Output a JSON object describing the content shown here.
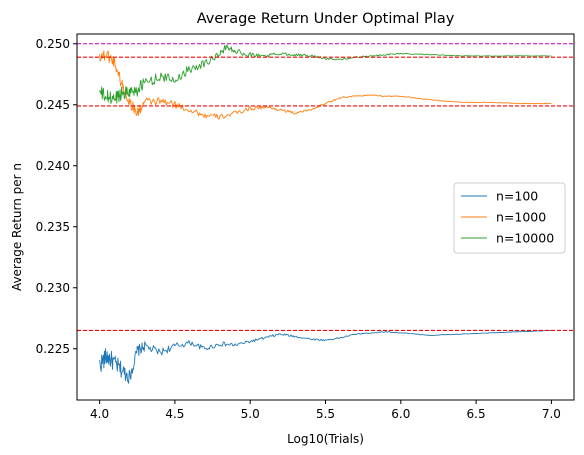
{
  "chart_data": {
    "type": "line",
    "title": "Average Return Under Optimal Play",
    "xlabel": "Log10(Trials)",
    "ylabel": "Average Return per n",
    "xlim": [
      3.85,
      7.15
    ],
    "ylim": [
      0.2208,
      0.2508
    ],
    "xticks": [
      4.0,
      4.5,
      5.0,
      5.5,
      6.0,
      6.5,
      7.0
    ],
    "xtick_labels": [
      "4.0",
      "4.5",
      "5.0",
      "5.5",
      "6.0",
      "6.5",
      "7.0"
    ],
    "yticks": [
      0.225,
      0.23,
      0.235,
      0.24,
      0.245,
      0.25
    ],
    "ytick_labels": [
      "0.225",
      "0.230",
      "0.235",
      "0.240",
      "0.245",
      "0.250"
    ],
    "grid": false,
    "legend_position": "center-right",
    "series": [
      {
        "name": "n=100",
        "color": "#1f77b4",
        "x": [
          4.0,
          4.05,
          4.1,
          4.15,
          4.2,
          4.25,
          4.3,
          4.4,
          4.5,
          4.6,
          4.7,
          4.8,
          4.9,
          5.0,
          5.1,
          5.2,
          5.3,
          5.4,
          5.5,
          5.6,
          5.7,
          5.8,
          5.9,
          6.0,
          6.2,
          6.4,
          6.6,
          6.8,
          7.0
        ],
        "y": [
          0.2237,
          0.2244,
          0.2238,
          0.2232,
          0.2227,
          0.2248,
          0.2252,
          0.2247,
          0.2252,
          0.2255,
          0.225,
          0.2254,
          0.2253,
          0.2256,
          0.2259,
          0.2262,
          0.226,
          0.2258,
          0.2257,
          0.2259,
          0.2262,
          0.2263,
          0.2264,
          0.2263,
          0.2261,
          0.2262,
          0.2263,
          0.2264,
          0.2265
        ],
        "noise": [
          0.0008,
          0.0008,
          0.0007,
          0.0007,
          0.0006,
          0.0005,
          0.0004,
          0.0003,
          0.0003,
          0.0002,
          0.0002,
          0.0002,
          0.00015,
          0.00012,
          0.0001,
          0.0001,
          8e-05,
          7e-05,
          6e-05,
          5e-05,
          5e-05,
          4e-05,
          4e-05,
          3e-05,
          3e-05,
          2e-05,
          2e-05,
          2e-05,
          1e-05
        ]
      },
      {
        "name": "n=1000",
        "color": "#ff7f0e",
        "x": [
          4.0,
          4.05,
          4.1,
          4.15,
          4.2,
          4.25,
          4.3,
          4.4,
          4.5,
          4.6,
          4.7,
          4.8,
          4.9,
          5.0,
          5.1,
          5.2,
          5.3,
          5.4,
          5.5,
          5.6,
          5.7,
          5.8,
          5.9,
          6.0,
          6.2,
          6.4,
          6.6,
          6.8,
          7.0
        ],
        "y": [
          0.249,
          0.2491,
          0.2485,
          0.2466,
          0.2452,
          0.2443,
          0.2452,
          0.2453,
          0.245,
          0.2446,
          0.2441,
          0.244,
          0.2443,
          0.2447,
          0.2448,
          0.2446,
          0.2443,
          0.2446,
          0.2451,
          0.2456,
          0.2457,
          0.2458,
          0.2457,
          0.2457,
          0.2454,
          0.2452,
          0.2452,
          0.2451,
          0.2451
        ],
        "noise": [
          0.0005,
          0.0005,
          0.0005,
          0.0005,
          0.0005,
          0.0004,
          0.0004,
          0.0003,
          0.0003,
          0.0003,
          0.00025,
          0.00022,
          0.0002,
          0.00016,
          0.00013,
          0.00012,
          0.0001,
          8e-05,
          7e-05,
          6e-05,
          5e-05,
          4e-05,
          4e-05,
          4e-05,
          3e-05,
          2e-05,
          2e-05,
          2e-05,
          1e-05
        ]
      },
      {
        "name": "n=10000",
        "color": "#2ca02c",
        "x": [
          4.0,
          4.05,
          4.1,
          4.15,
          4.2,
          4.25,
          4.3,
          4.4,
          4.5,
          4.6,
          4.7,
          4.8,
          4.85,
          4.9,
          5.0,
          5.1,
          5.2,
          5.3,
          5.4,
          5.5,
          5.6,
          5.7,
          5.8,
          5.9,
          6.0,
          6.2,
          6.4,
          6.6,
          6.8,
          7.0
        ],
        "y": [
          0.246,
          0.2456,
          0.2455,
          0.246,
          0.2461,
          0.2462,
          0.2468,
          0.2473,
          0.247,
          0.248,
          0.2484,
          0.2492,
          0.2498,
          0.2494,
          0.2491,
          0.249,
          0.2492,
          0.2491,
          0.249,
          0.2488,
          0.2487,
          0.2489,
          0.249,
          0.2491,
          0.2492,
          0.2491,
          0.249,
          0.249,
          0.249,
          0.249
        ],
        "noise": [
          0.0006,
          0.0006,
          0.0006,
          0.0006,
          0.0005,
          0.0005,
          0.0005,
          0.0004,
          0.0004,
          0.0004,
          0.0003,
          0.0003,
          0.0003,
          0.0002,
          0.0002,
          0.00015,
          0.00013,
          0.0001,
          0.0001,
          8e-05,
          7e-05,
          6e-05,
          5e-05,
          5e-05,
          4e-05,
          3e-05,
          3e-05,
          2e-05,
          2e-05,
          1e-05
        ]
      }
    ],
    "reference_lines": [
      {
        "y": 0.25,
        "color": "#bf00bf"
      },
      {
        "y": 0.2489,
        "color": "#ff0000"
      },
      {
        "y": 0.2449,
        "color": "#ff0000"
      },
      {
        "y": 0.2265,
        "color": "#ff0000"
      }
    ]
  }
}
